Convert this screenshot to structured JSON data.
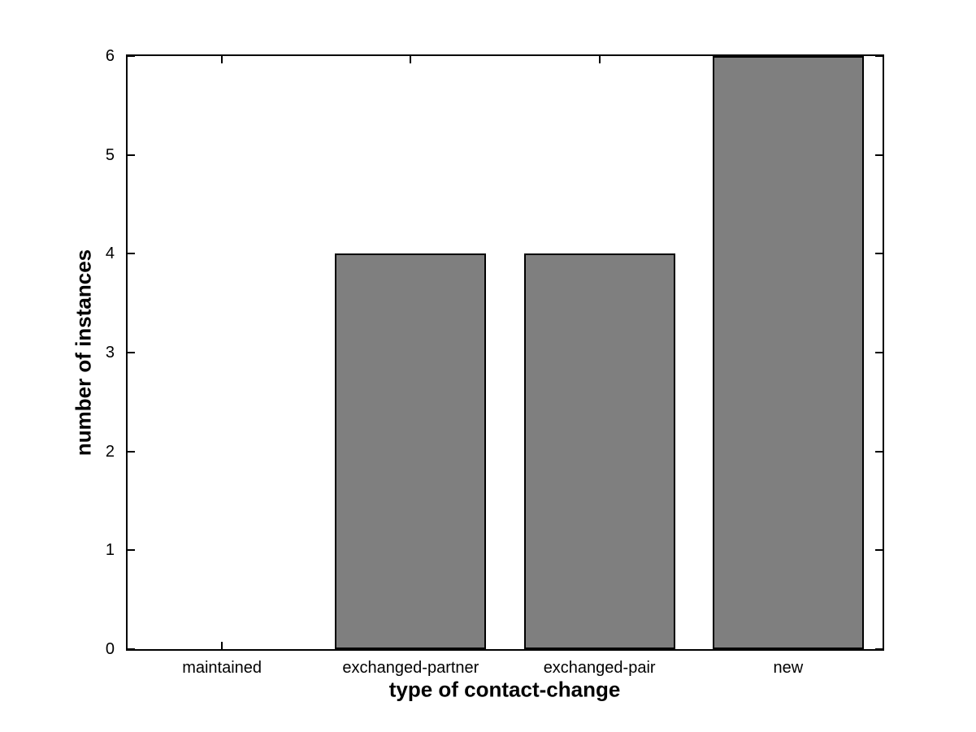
{
  "chart_data": {
    "type": "bar",
    "title": "",
    "categories": [
      "maintained",
      "exchanged-partner",
      "exchanged-pair",
      "new"
    ],
    "values": [
      0,
      4,
      4,
      6
    ],
    "xlabel": "type of contact-change",
    "ylabel": "number of instances",
    "ylim": [
      0,
      6
    ],
    "yticks": [
      0,
      1,
      2,
      3,
      4,
      5,
      6
    ],
    "bar_width_fraction": 0.8,
    "bar_color": "#7f7f7f",
    "bar_edge_color": "#000000",
    "axis_color": "#000000",
    "background": "#ffffff",
    "grid": false,
    "legend": null,
    "box": true,
    "tick_direction": "in"
  }
}
